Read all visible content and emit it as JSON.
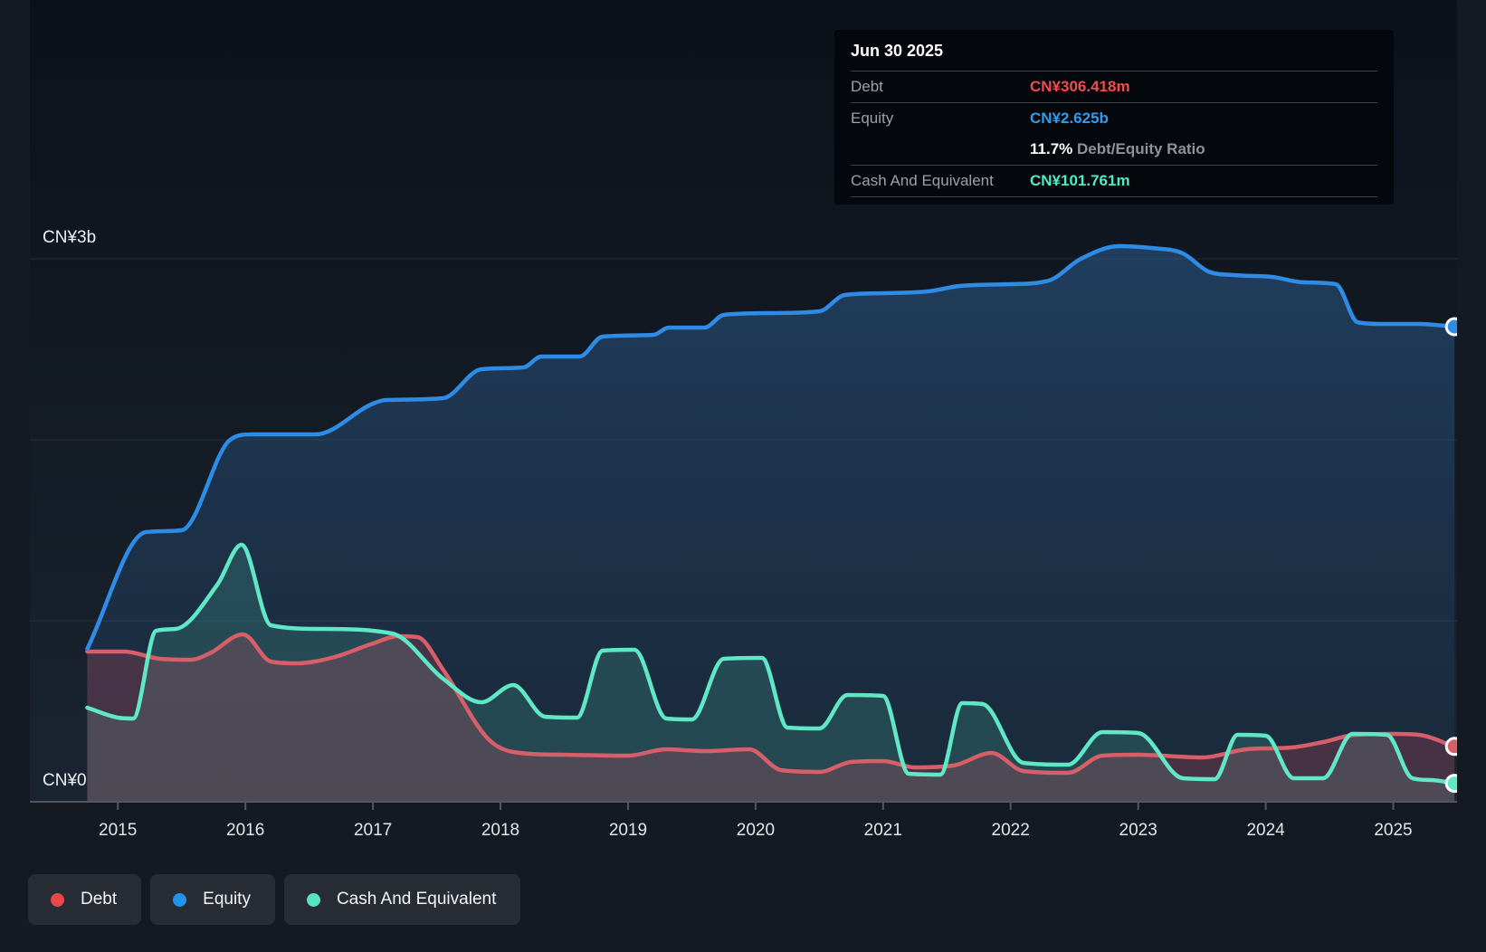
{
  "tooltip": {
    "date": "Jun 30 2025",
    "rows": [
      {
        "id": "debt",
        "label": "Debt",
        "value": "CN¥306.418m",
        "color": "#f04c4c"
      },
      {
        "id": "equity",
        "label": "Equity",
        "value": "CN¥2.625b",
        "color": "#2f9cee"
      },
      {
        "id": "cash",
        "label": "Cash And Equivalent",
        "value": "CN¥101.761m",
        "color": "#4debc8"
      }
    ],
    "ratio_value": "11.7%",
    "ratio_label": "Debt/Equity Ratio"
  },
  "legend": {
    "items": [
      {
        "label": "Debt",
        "color": "#e54949"
      },
      {
        "label": "Equity",
        "color": "#2193e8"
      },
      {
        "label": "Cash And Equivalent",
        "color": "#57e4c0"
      }
    ]
  },
  "chart_data": {
    "type": "area",
    "unit": "CN¥ billions",
    "grid_on": true,
    "legend_position": "bottom-left",
    "x_axis": {
      "range": [
        2014.31,
        2025.5
      ],
      "ticks": [
        2015,
        2016,
        2017,
        2018,
        2019,
        2020,
        2021,
        2022,
        2023,
        2024,
        2025
      ]
    },
    "y_axis": {
      "range": [
        0,
        3.205
      ],
      "gridlines": [
        1,
        2,
        3
      ],
      "labels": [
        {
          "value": 3,
          "label": "CN¥3b"
        },
        {
          "value": 0,
          "label": "CN¥0"
        }
      ]
    },
    "colors": {
      "gridline": "rgba(130,145,165,0.16)",
      "axis": "#4d5765",
      "tick_label": "#e3e7ec",
      "y_label": "#eef1f4",
      "marker_ring": "#ffffff",
      "plot_bg_top": "#0c1119",
      "plot_bg_bottom": "#1a2430"
    },
    "series": [
      {
        "name": "Equity",
        "color": "#2e8ce6",
        "fill_top": "rgba(50,105,160,0.48)",
        "fill_bottom": "rgba(30,60,95,0.26)",
        "points": [
          [
            2014.76,
            0.845
          ],
          [
            2015.22,
            1.49
          ],
          [
            2015.5,
            1.5
          ],
          [
            2015.88,
            2.0
          ],
          [
            2016.05,
            2.03
          ],
          [
            2016.55,
            2.03
          ],
          [
            2017.0,
            2.2
          ],
          [
            2017.1,
            2.22
          ],
          [
            2017.55,
            2.23
          ],
          [
            2017.85,
            2.39
          ],
          [
            2018.18,
            2.4
          ],
          [
            2018.32,
            2.46
          ],
          [
            2018.62,
            2.46
          ],
          [
            2018.8,
            2.57
          ],
          [
            2019.2,
            2.58
          ],
          [
            2019.32,
            2.62
          ],
          [
            2019.6,
            2.62
          ],
          [
            2019.75,
            2.69
          ],
          [
            2020.1,
            2.7
          ],
          [
            2020.5,
            2.71
          ],
          [
            2020.7,
            2.8
          ],
          [
            2021.0,
            2.81
          ],
          [
            2021.35,
            2.82
          ],
          [
            2021.6,
            2.85
          ],
          [
            2022.0,
            2.86
          ],
          [
            2022.3,
            2.88
          ],
          [
            2022.55,
            3.0
          ],
          [
            2022.85,
            3.07
          ],
          [
            2023.1,
            3.06
          ],
          [
            2023.35,
            3.03
          ],
          [
            2023.55,
            2.93
          ],
          [
            2023.75,
            2.91
          ],
          [
            2024.05,
            2.9
          ],
          [
            2024.3,
            2.87
          ],
          [
            2024.55,
            2.86
          ],
          [
            2024.72,
            2.65
          ],
          [
            2024.9,
            2.64
          ],
          [
            2025.2,
            2.64
          ],
          [
            2025.48,
            2.625
          ]
        ]
      },
      {
        "name": "Cash And Equivalent",
        "color": "#60e7c5",
        "fill": "rgba(95,230,195,0.16)",
        "points": [
          [
            2014.76,
            0.52
          ],
          [
            2015.0,
            0.465
          ],
          [
            2015.12,
            0.46
          ],
          [
            2015.3,
            0.945
          ],
          [
            2015.45,
            0.955
          ],
          [
            2015.78,
            1.2
          ],
          [
            2015.97,
            1.42
          ],
          [
            2016.2,
            0.975
          ],
          [
            2016.6,
            0.955
          ],
          [
            2017.15,
            0.93
          ],
          [
            2017.55,
            0.68
          ],
          [
            2017.85,
            0.55
          ],
          [
            2018.1,
            0.645
          ],
          [
            2018.35,
            0.47
          ],
          [
            2018.6,
            0.465
          ],
          [
            2018.8,
            0.835
          ],
          [
            2019.05,
            0.84
          ],
          [
            2019.3,
            0.46
          ],
          [
            2019.5,
            0.455
          ],
          [
            2019.75,
            0.79
          ],
          [
            2020.05,
            0.795
          ],
          [
            2020.25,
            0.41
          ],
          [
            2020.5,
            0.405
          ],
          [
            2020.72,
            0.59
          ],
          [
            2021.0,
            0.585
          ],
          [
            2021.2,
            0.155
          ],
          [
            2021.45,
            0.15
          ],
          [
            2021.62,
            0.545
          ],
          [
            2021.78,
            0.54
          ],
          [
            2022.1,
            0.215
          ],
          [
            2022.45,
            0.205
          ],
          [
            2022.72,
            0.385
          ],
          [
            2023.0,
            0.38
          ],
          [
            2023.35,
            0.13
          ],
          [
            2023.6,
            0.125
          ],
          [
            2023.78,
            0.37
          ],
          [
            2024.0,
            0.365
          ],
          [
            2024.22,
            0.13
          ],
          [
            2024.45,
            0.13
          ],
          [
            2024.68,
            0.375
          ],
          [
            2024.95,
            0.37
          ],
          [
            2025.15,
            0.13
          ],
          [
            2025.3,
            0.12
          ],
          [
            2025.48,
            0.102
          ]
        ]
      },
      {
        "name": "Debt",
        "color": "#d65f6a",
        "fill": "rgba(226,76,96,0.22)",
        "points": [
          [
            2014.76,
            0.83
          ],
          [
            2015.05,
            0.83
          ],
          [
            2015.33,
            0.79
          ],
          [
            2015.57,
            0.785
          ],
          [
            2015.72,
            0.82
          ],
          [
            2015.98,
            0.925
          ],
          [
            2016.2,
            0.775
          ],
          [
            2016.4,
            0.765
          ],
          [
            2016.7,
            0.8
          ],
          [
            2017.0,
            0.875
          ],
          [
            2017.2,
            0.915
          ],
          [
            2017.35,
            0.91
          ],
          [
            2017.55,
            0.73
          ],
          [
            2017.9,
            0.35
          ],
          [
            2018.1,
            0.275
          ],
          [
            2018.5,
            0.26
          ],
          [
            2019.0,
            0.255
          ],
          [
            2019.3,
            0.29
          ],
          [
            2019.6,
            0.28
          ],
          [
            2019.95,
            0.29
          ],
          [
            2020.2,
            0.175
          ],
          [
            2020.5,
            0.165
          ],
          [
            2020.75,
            0.22
          ],
          [
            2021.0,
            0.225
          ],
          [
            2021.25,
            0.19
          ],
          [
            2021.55,
            0.2
          ],
          [
            2021.85,
            0.27
          ],
          [
            2022.1,
            0.17
          ],
          [
            2022.45,
            0.16
          ],
          [
            2022.72,
            0.255
          ],
          [
            2023.0,
            0.26
          ],
          [
            2023.5,
            0.245
          ],
          [
            2023.85,
            0.29
          ],
          [
            2024.2,
            0.3
          ],
          [
            2024.45,
            0.33
          ],
          [
            2024.7,
            0.37
          ],
          [
            2025.0,
            0.375
          ],
          [
            2025.2,
            0.37
          ],
          [
            2025.48,
            0.306
          ]
        ]
      }
    ]
  }
}
